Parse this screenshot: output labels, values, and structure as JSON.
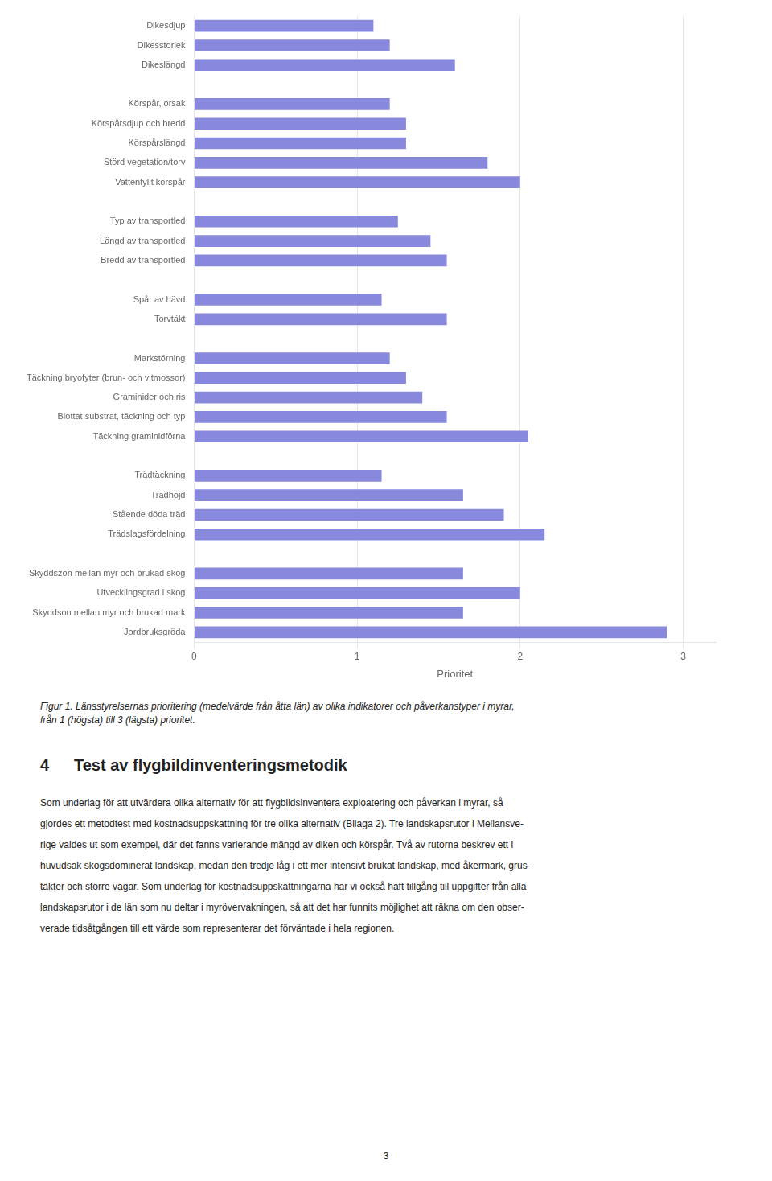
{
  "chart_data": {
    "type": "bar",
    "orientation": "horizontal",
    "categories": [
      "Dikesdjup",
      "Dikesstorlek",
      "Dikeslängd",
      null,
      "Körspår, orsak",
      "Körspårsdjup och bredd",
      "Körspårslängd",
      "Störd vegetation/torv",
      "Vattenfyllt körspår",
      null,
      "Typ av transportled",
      "Längd av transportled",
      "Bredd av transportled",
      null,
      "Spår av hävd",
      "Torvtäkt",
      null,
      "Markstörning",
      "Täckning bryofyter (brun- och vitmossor)",
      "Graminider och ris",
      "Blottat substrat, täckning och typ",
      "Täckning graminidförna",
      null,
      "Trädtäckning",
      "Trädhöjd",
      "Stående döda träd",
      "Trädslagsfördelning",
      null,
      "Skyddszon mellan myr och brukad skog",
      "Utvecklingsgrad i skog",
      "Skyddson mellan myr och brukad mark",
      "Jordbruksgröda"
    ],
    "values": [
      1.1,
      1.2,
      1.6,
      0,
      1.2,
      1.3,
      1.3,
      1.8,
      2.0,
      0,
      1.25,
      1.45,
      1.55,
      0,
      1.15,
      1.55,
      0,
      1.2,
      1.3,
      1.4,
      1.55,
      2.05,
      0,
      1.15,
      1.65,
      1.9,
      2.15,
      0,
      1.65,
      2.0,
      1.65,
      2.9
    ],
    "color": "#8888dd",
    "xlabel": "Prioritet",
    "xlim": [
      0,
      3.2
    ],
    "xticks": [
      0,
      1,
      2,
      3
    ],
    "grid": true,
    "annotations": [
      "Figur 1. Länsstyrelsernas prioritering (medelvärde från åtta län) av olika indikatorer och påverkanstyper i myrar,",
      "från 1 (högsta) till 3 (lägsta) prioritet.",
      "4",
      "Test av flygbildinventeringsmetodik",
      "Som underlag för att utvärdera olika alternativ för att flygbildsinventera exploatering och påverkan i myrar, så",
      "gjordes ett metodtest med kostnadsuppskattning för tre olika alternativ (Bilaga 2). Tre landskapsrutor i Mellansve-",
      "rige valdes ut som exempel, där det fanns varierande mängd av diken och körspår. Två av rutorna beskrev ett i",
      "huvudsak skogsdominerat landskap, medan den tredje låg i ett mer intensivt brukat landskap, med åkermark, grus-",
      "täkter och större vägar. Som underlag för kostnadsuppskattningarna har vi också haft tillgång till uppgifter från alla",
      "landskapsrutor i de län som nu deltar i myrövervakningen, så att det har funnits möjlighet att räkna om den obser-",
      "verade tidsåtgången till ett värde som representerar det förväntade i hela regionen.",
      "3"
    ]
  }
}
